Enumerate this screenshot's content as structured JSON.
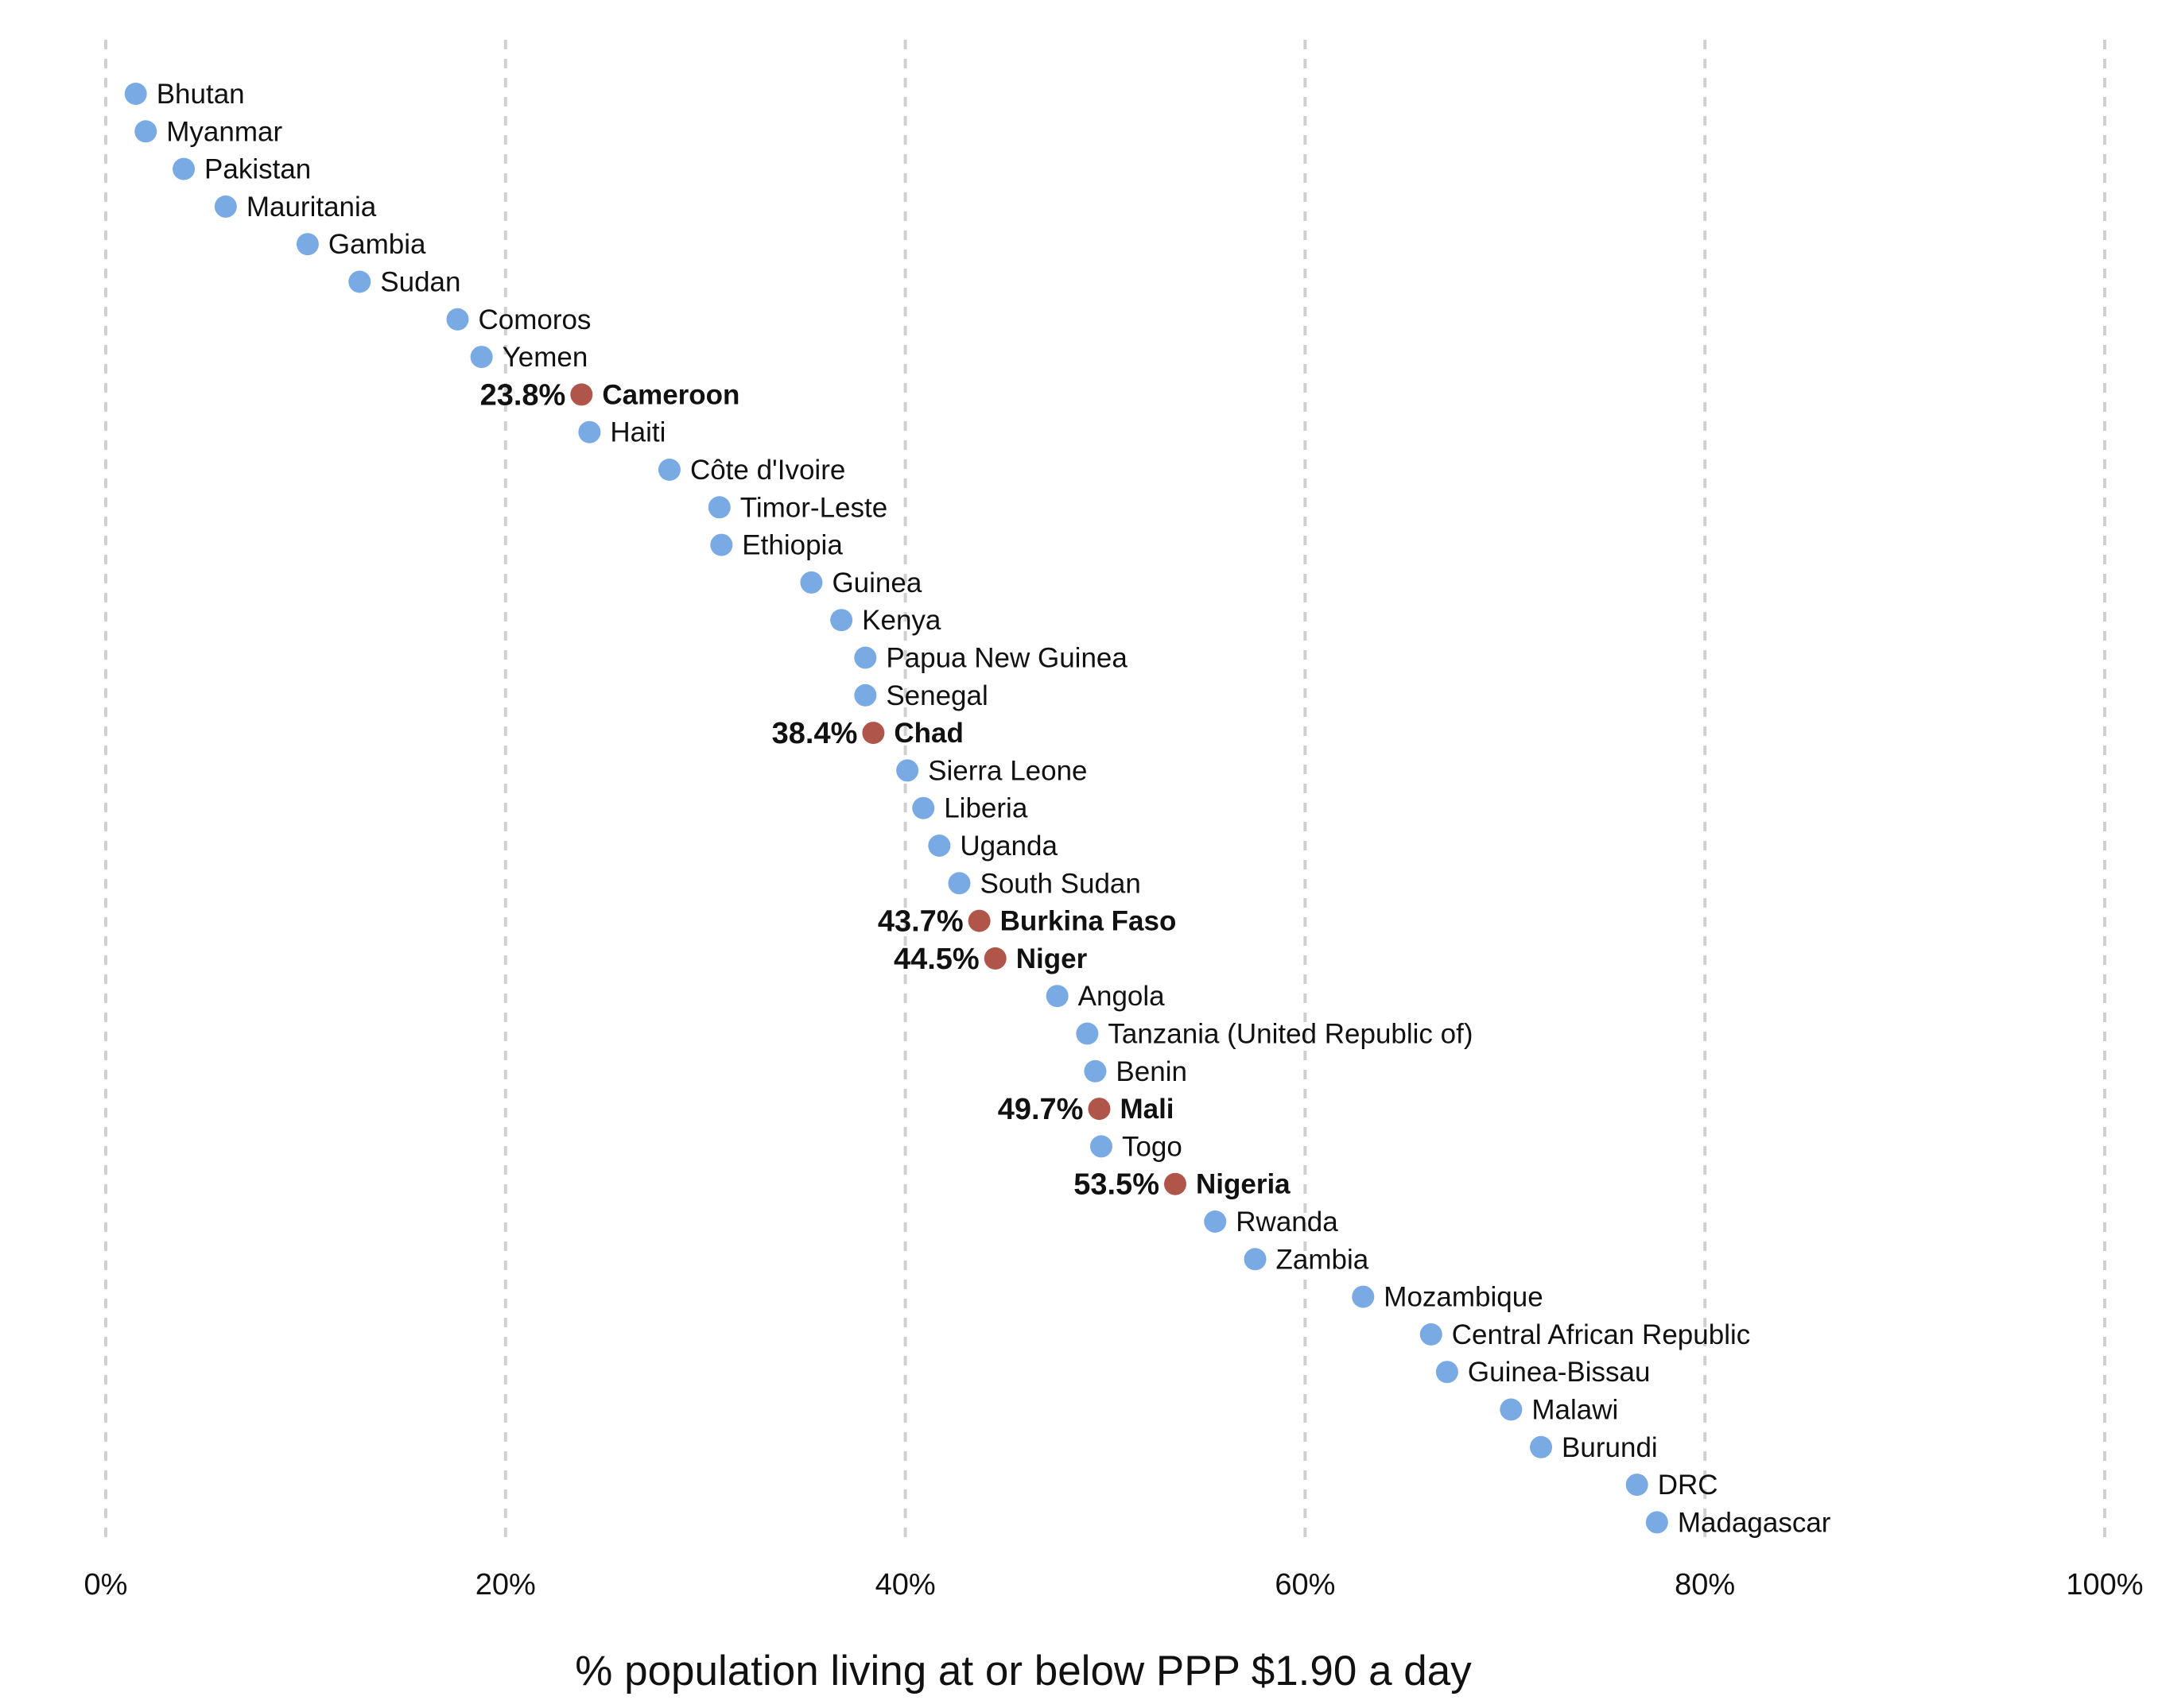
{
  "chart_data": {
    "type": "scatter",
    "title": "",
    "xlabel": "% population living at or below PPP $1.90 a day",
    "ylabel": "",
    "xlim": [
      0,
      100
    ],
    "x_ticks": [
      "0%",
      "20%",
      "40%",
      "60%",
      "80%",
      "100%"
    ],
    "grid": "vertical dashed",
    "colors": {
      "default": "#7aaae3",
      "highlight": "#b0554a"
    },
    "points": [
      {
        "name": "Bhutan",
        "x": 1.5
      },
      {
        "name": "Myanmar",
        "x": 2.0
      },
      {
        "name": "Pakistan",
        "x": 3.9
      },
      {
        "name": "Mauritania",
        "x": 6.0
      },
      {
        "name": "Gambia",
        "x": 10.1
      },
      {
        "name": "Sudan",
        "x": 12.7
      },
      {
        "name": "Comoros",
        "x": 17.6
      },
      {
        "name": "Yemen",
        "x": 18.8
      },
      {
        "name": "Cameroon",
        "x": 23.8,
        "highlight": true,
        "label": "23.8%"
      },
      {
        "name": "Haiti",
        "x": 24.2
      },
      {
        "name": "Côte d'Ivoire",
        "x": 28.2
      },
      {
        "name": "Timor-Leste",
        "x": 30.7
      },
      {
        "name": "Ethiopia",
        "x": 30.8
      },
      {
        "name": "Guinea",
        "x": 35.3
      },
      {
        "name": "Kenya",
        "x": 36.8
      },
      {
        "name": "Papua New Guinea",
        "x": 38.0
      },
      {
        "name": "Senegal",
        "x": 38.0
      },
      {
        "name": "Chad",
        "x": 38.4,
        "highlight": true,
        "label": "38.4%"
      },
      {
        "name": "Sierra Leone",
        "x": 40.1
      },
      {
        "name": "Liberia",
        "x": 40.9
      },
      {
        "name": "Uganda",
        "x": 41.7
      },
      {
        "name": "South Sudan",
        "x": 42.7
      },
      {
        "name": "Burkina Faso",
        "x": 43.7,
        "highlight": true,
        "label": "43.7%"
      },
      {
        "name": "Niger",
        "x": 44.5,
        "highlight": true,
        "label": "44.5%"
      },
      {
        "name": "Angola",
        "x": 47.6
      },
      {
        "name": "Tanzania (United Republic of)",
        "x": 49.1
      },
      {
        "name": "Benin",
        "x": 49.5
      },
      {
        "name": "Mali",
        "x": 49.7,
        "highlight": true,
        "label": "49.7%"
      },
      {
        "name": "Togo",
        "x": 49.8
      },
      {
        "name": "Nigeria",
        "x": 53.5,
        "highlight": true,
        "label": "53.5%"
      },
      {
        "name": "Rwanda",
        "x": 55.5
      },
      {
        "name": "Zambia",
        "x": 57.5
      },
      {
        "name": "Mozambique",
        "x": 62.9
      },
      {
        "name": "Central African Republic",
        "x": 66.3
      },
      {
        "name": "Guinea-Bissau",
        "x": 67.1
      },
      {
        "name": "Malawi",
        "x": 70.3
      },
      {
        "name": "Burundi",
        "x": 71.8
      },
      {
        "name": "DRC",
        "x": 76.6
      },
      {
        "name": "Madagascar",
        "x": 77.6
      }
    ]
  }
}
